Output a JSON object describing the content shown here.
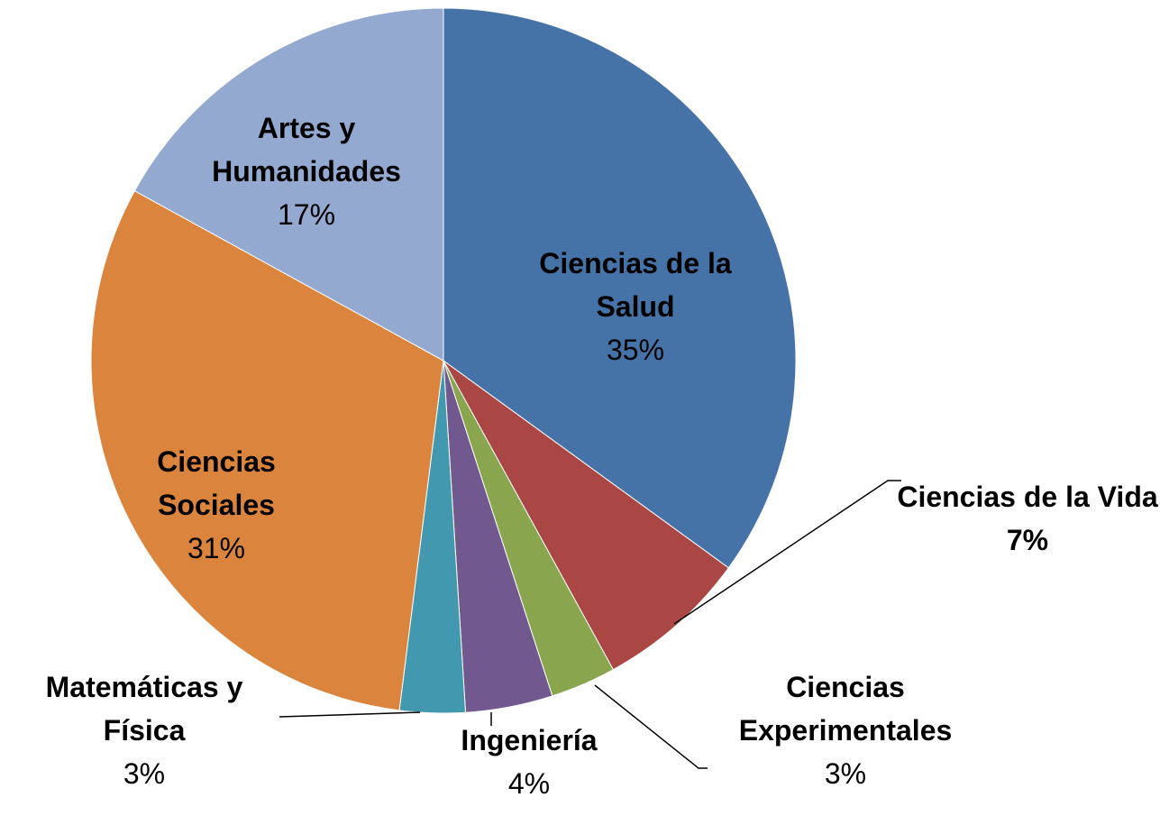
{
  "chart_data": {
    "type": "pie",
    "categories": [
      "Ciencias de la Salud",
      "Ciencias de la Vida",
      "Ciencias Experimentales",
      "Ingeniería",
      "Matemáticas y Física",
      "Ciencias Sociales",
      "Artes y Humanidades"
    ],
    "values": [
      35,
      7,
      3,
      4,
      3,
      31,
      17
    ],
    "value_labels": [
      "35%",
      "7%",
      "3%",
      "4%",
      "3%",
      "31%",
      "17%"
    ],
    "colors": [
      "#4572a7",
      "#aa4643",
      "#89a54e",
      "#71588f",
      "#4198af",
      "#db843d",
      "#93a9cf"
    ]
  }
}
